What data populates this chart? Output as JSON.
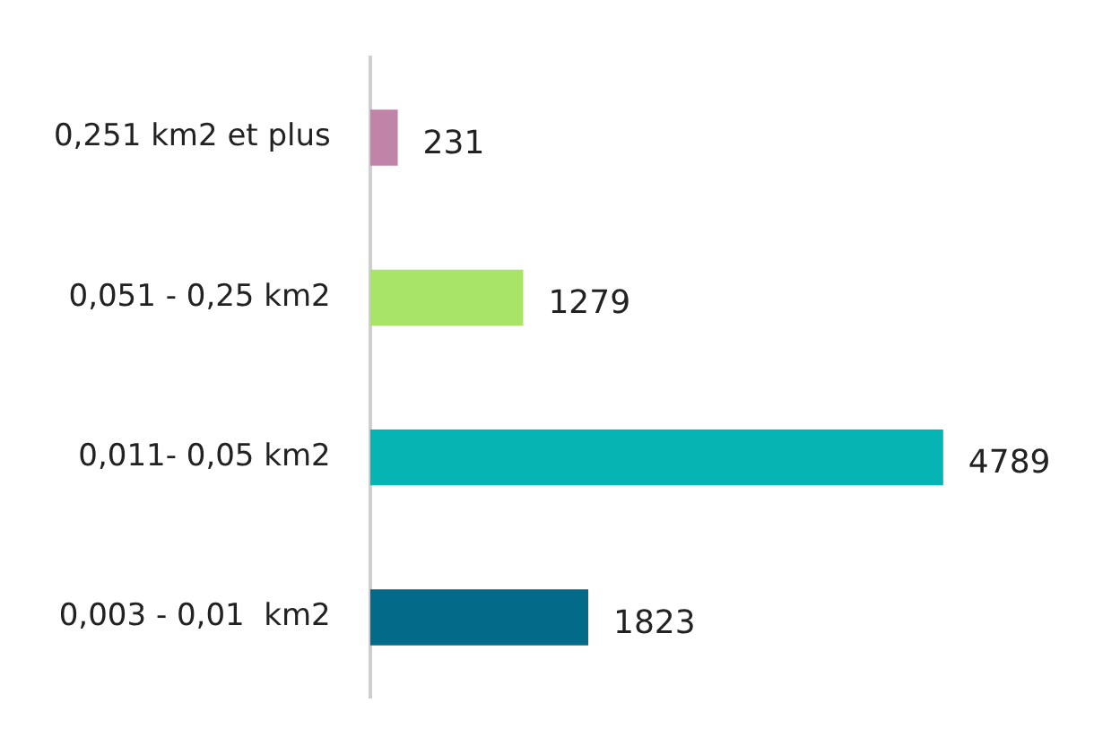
{
  "chart_data": {
    "type": "bar",
    "orientation": "horizontal",
    "categories": [
      "0,251 km2 et plus",
      "0,051 - 0,25 km2",
      "0,011- 0,05 km2",
      "0,003 - 0,01  km2"
    ],
    "values": [
      231,
      1279,
      4789,
      1823
    ],
    "colors": [
      "#c084a9",
      "#a8e566",
      "#05b5b3",
      "#046a8a"
    ],
    "data_labels": true,
    "grid": false,
    "legend": false,
    "tick_labels": "y"
  }
}
